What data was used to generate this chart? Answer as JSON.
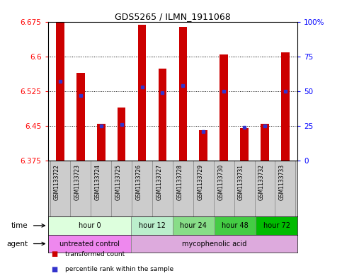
{
  "title": "GDS5265 / ILMN_1911068",
  "samples": [
    "GSM1133722",
    "GSM1133723",
    "GSM1133724",
    "GSM1133725",
    "GSM1133726",
    "GSM1133727",
    "GSM1133728",
    "GSM1133729",
    "GSM1133730",
    "GSM1133731",
    "GSM1133732",
    "GSM1133733"
  ],
  "transformed_counts": [
    6.675,
    6.565,
    6.455,
    6.49,
    6.67,
    6.575,
    6.665,
    6.44,
    6.605,
    6.445,
    6.455,
    6.61
  ],
  "percentile_ranks": [
    57,
    47,
    25,
    26,
    53,
    49,
    54,
    21,
    50,
    24,
    25,
    50
  ],
  "y_min": 6.375,
  "y_max": 6.675,
  "y_ticks": [
    6.375,
    6.45,
    6.525,
    6.6,
    6.675
  ],
  "y_tick_labels": [
    "6.375",
    "6.45",
    "6.525",
    "6.6",
    "6.675"
  ],
  "right_y_ticks": [
    0,
    25,
    50,
    75,
    100
  ],
  "right_y_labels": [
    "0",
    "25",
    "50",
    "75",
    "100%"
  ],
  "bar_color": "#cc0000",
  "dot_color": "#3333cc",
  "sample_area_color": "#cccccc",
  "time_groups": [
    {
      "label": "hour 0",
      "start": 0,
      "end": 4,
      "color": "#ddffdd"
    },
    {
      "label": "hour 12",
      "start": 4,
      "end": 6,
      "color": "#bbeecc"
    },
    {
      "label": "hour 24",
      "start": 6,
      "end": 8,
      "color": "#88dd88"
    },
    {
      "label": "hour 48",
      "start": 8,
      "end": 10,
      "color": "#44cc44"
    },
    {
      "label": "hour 72",
      "start": 10,
      "end": 12,
      "color": "#00bb00"
    }
  ],
  "agent_groups": [
    {
      "label": "untreated control",
      "start": 0,
      "end": 4,
      "color": "#ee88ee"
    },
    {
      "label": "mycophenolic acid",
      "start": 4,
      "end": 12,
      "color": "#ddaadd"
    }
  ],
  "legend": [
    {
      "label": "transformed count",
      "color": "#cc0000"
    },
    {
      "label": "percentile rank within the sample",
      "color": "#3333cc"
    }
  ]
}
